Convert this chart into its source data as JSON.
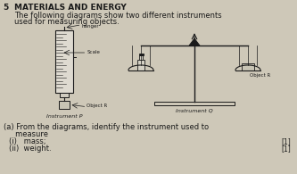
{
  "bg_color": "#cec8b8",
  "text_color": "#1a1a1a",
  "section_num": "5",
  "heading1": "MATERIALS AND ENERGY",
  "heading2": "The following diagrams show two different instruments",
  "heading3": "used for measuring objects.",
  "instr_p_label": "Instrument P",
  "instr_q_label": "Instrument Q",
  "object_r_label": "Object R",
  "object_r_label2": "Object R",
  "hanger_label": "hanger",
  "scale_label": "Scale",
  "question_a": "(a) From the diagrams, identify the instrument used to",
  "question_measure": "     measure",
  "question_i": "(i)   mass;",
  "question_ii": "(ii)  weight.",
  "mark_1": "[1]",
  "mark_2": "[1]"
}
